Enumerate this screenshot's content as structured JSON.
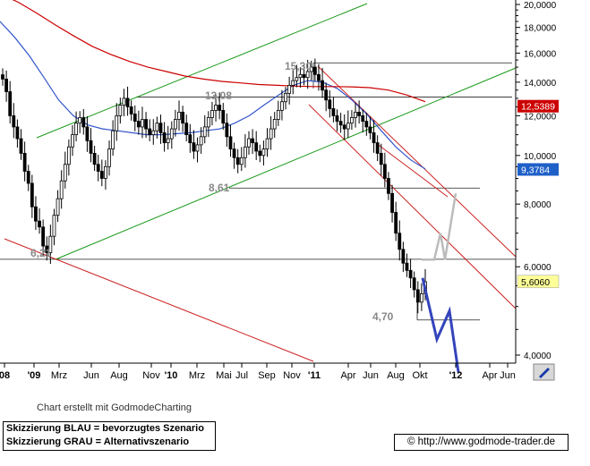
{
  "chart_data": {
    "type": "candlestick",
    "y_axis": {
      "scale": "log",
      "range": [
        3.8,
        21
      ],
      "ticks": [
        {
          "value": 4,
          "label": "4,0000"
        },
        {
          "value": 6,
          "label": "6,0000"
        },
        {
          "value": 8,
          "label": "8,0000"
        },
        {
          "value": 10,
          "label": "10,0000"
        },
        {
          "value": 12,
          "label": "12,0000"
        },
        {
          "value": 14,
          "label": "14,0000"
        },
        {
          "value": 16,
          "label": "16,0000"
        },
        {
          "value": 18,
          "label": "18,0000"
        },
        {
          "value": 20,
          "label": "20,0000"
        }
      ]
    },
    "x_axis": {
      "ticks": [
        {
          "label": "08",
          "bold": true
        },
        {
          "label": "'09",
          "bold": true
        },
        {
          "label": "Mrz",
          "bold": false
        },
        {
          "label": "Jun",
          "bold": false
        },
        {
          "label": "Aug",
          "bold": false
        },
        {
          "label": "Nov",
          "bold": false
        },
        {
          "label": "'10",
          "bold": true
        },
        {
          "label": "Mrz",
          "bold": false
        },
        {
          "label": "Mai",
          "bold": false
        },
        {
          "label": "Jul",
          "bold": false
        },
        {
          "label": "Sep",
          "bold": false
        },
        {
          "label": "Nov",
          "bold": false
        },
        {
          "label": "'11",
          "bold": true
        },
        {
          "label": "Apr",
          "bold": false
        },
        {
          "label": "Jun",
          "bold": false
        },
        {
          "label": "Aug",
          "bold": false
        },
        {
          "label": "Okt",
          "bold": false
        },
        {
          "label": "'12",
          "bold": true
        },
        {
          "label": "Apr",
          "bold": false
        },
        {
          "label": "Jun",
          "bold": false
        }
      ]
    },
    "price_markers": [
      {
        "value": 12.5389,
        "label": "12,5389",
        "color": "#cc0000"
      },
      {
        "value": 9.3784,
        "label": "9,3784",
        "color": "#1f5fc8"
      },
      {
        "value": 5.606,
        "label": "5,6060",
        "color": "#ffff99"
      }
    ],
    "annotations": [
      {
        "label": "15,30"
      },
      {
        "label": "13,08"
      },
      {
        "label": "8,61"
      },
      {
        "label": "6,21"
      },
      {
        "label": "4,70"
      }
    ],
    "horizontal_levels": [
      15.3,
      13.08,
      8.61,
      6.21,
      4.7
    ],
    "scenarios": [
      {
        "color": "blue",
        "path": [
          5.7,
          4.3,
          4.9,
          3.7
        ]
      },
      {
        "color": "gray",
        "path": [
          6.2,
          6.2,
          7.0,
          6.2,
          8.4
        ]
      }
    ],
    "series": {
      "ohlc_closes": [
        14.2,
        13.4,
        12.0,
        11.4,
        10.8,
        10.1,
        9.3,
        8.8,
        7.9,
        7.4,
        7.2,
        6.6,
        6.4,
        6.9,
        7.6,
        8.2,
        8.9,
        9.6,
        10.4,
        11.0,
        11.6,
        11.9,
        11.4,
        10.7,
        10.1,
        9.6,
        9.3,
        9.0,
        9.5,
        10.3,
        11.2,
        12.0,
        12.6,
        13.0,
        12.5,
        12.1,
        11.7,
        11.4,
        11.8,
        11.3,
        11.0,
        11.2,
        11.6,
        11.1,
        10.6,
        10.8,
        11.3,
        11.8,
        12.2,
        11.6,
        11.0,
        10.6,
        10.2,
        10.5,
        10.9,
        11.4,
        11.9,
        12.3,
        12.6,
        12.3,
        11.6,
        10.9,
        10.3,
        9.9,
        9.6,
        9.9,
        10.4,
        10.8,
        10.6,
        10.2,
        10.0,
        10.3,
        10.8,
        11.3,
        11.8,
        12.3,
        12.8,
        13.3,
        13.8,
        14.1,
        14.3,
        14.5,
        14.3,
        14.7,
        15.0,
        14.5,
        14.1,
        13.5,
        12.9,
        12.4,
        12.0,
        11.7,
        11.5,
        11.3,
        11.6,
        11.9,
        12.2,
        12.0,
        11.7,
        11.4,
        11.1,
        10.6,
        10.1,
        9.6,
        9.0,
        8.4,
        7.7,
        7.0,
        6.5,
        6.1,
        5.9,
        5.7,
        5.4,
        5.1,
        5.3,
        5.6
      ],
      "moving_averages": [
        {
          "name": "",
          "color": "#3355cc",
          "values": [
            18.5,
            17.2,
            15.8,
            14.3,
            12.9,
            12.0,
            11.5,
            11.3,
            11.2,
            11.1,
            11.0,
            11.0,
            11.05,
            11.1,
            11.2,
            11.3,
            11.6,
            12.0,
            12.6,
            13.2,
            13.8,
            14.1,
            14.0,
            13.6,
            12.9,
            12.1,
            11.2,
            10.4,
            9.8,
            9.4
          ]
        },
        {
          "name": "",
          "color": "#cc0000",
          "values": [
            21.0,
            20.2,
            19.2,
            18.2,
            17.3,
            16.5,
            15.9,
            15.4,
            15.0,
            14.7,
            14.4,
            14.2,
            14.05,
            13.95,
            13.85,
            13.8,
            13.75,
            13.72,
            13.72,
            13.7,
            13.65,
            13.5,
            13.2,
            12.8
          ]
        }
      ]
    },
    "trend_lines": [
      {
        "color": "green",
        "description": "upper channel line"
      },
      {
        "color": "green",
        "description": "lower channel line"
      },
      {
        "color": "red",
        "description": "lower long-term downtrend"
      },
      {
        "color": "red",
        "description": "downtrend channel upper"
      },
      {
        "color": "red",
        "description": "downtrend channel lower"
      },
      {
        "color": "red",
        "description": "downtrend channel middle"
      }
    ]
  },
  "footer": {
    "credit": "Chart erstellt mit GodmodeCharting",
    "legend_blue": "Skizzierung BLAU = bevorzugtes Szenario",
    "legend_gray": "Skizzierung GRAU = Alternativszenario",
    "url": "© http://www.godmode-trader.de"
  }
}
